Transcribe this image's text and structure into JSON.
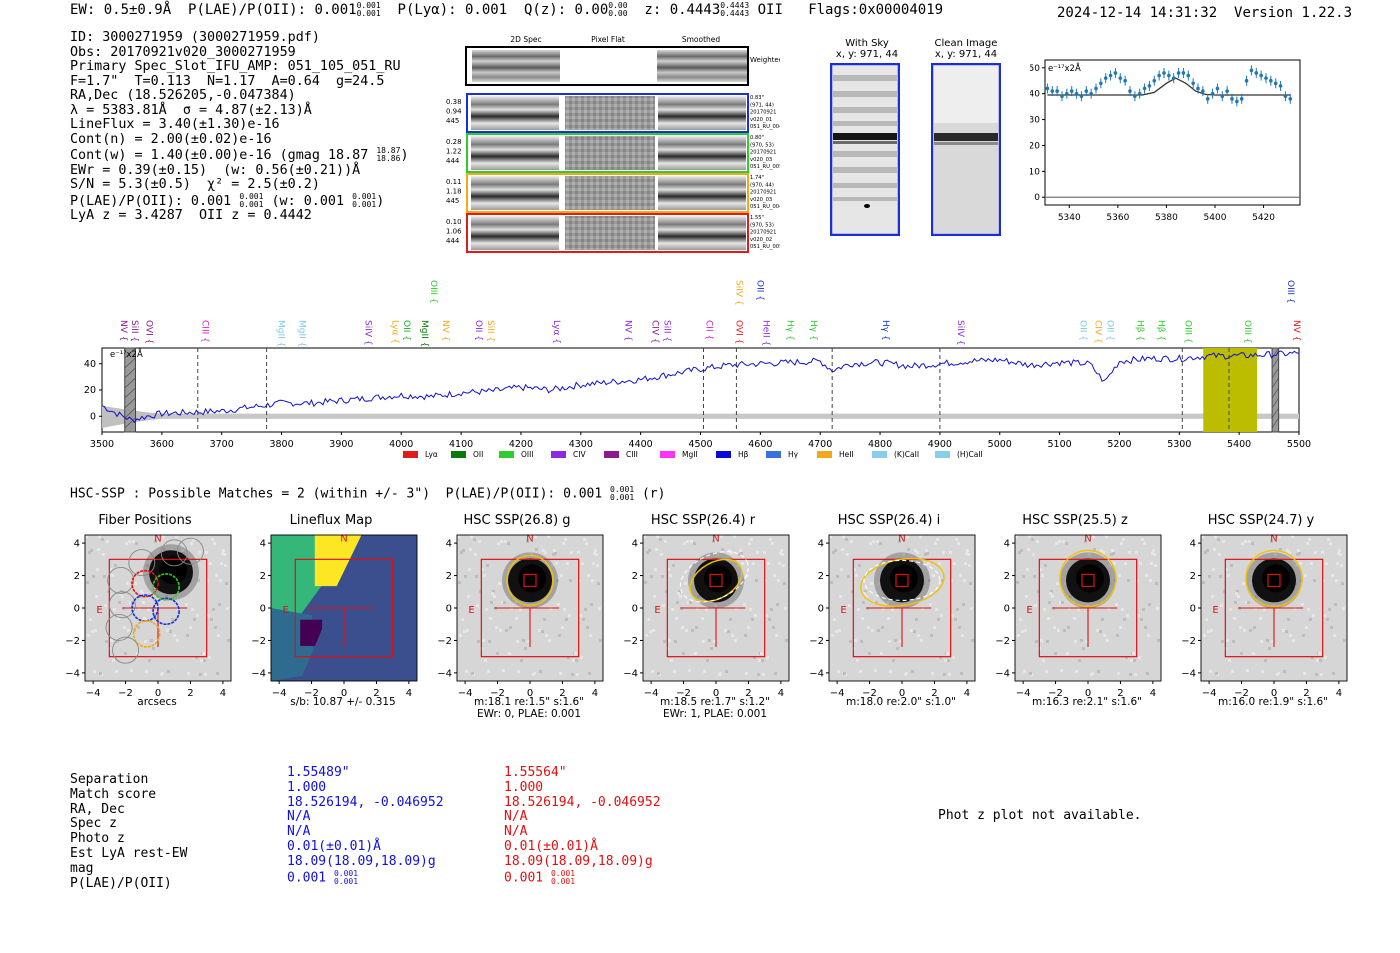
{
  "header": {
    "ew": "EW: 0.5±0.9Å",
    "plae_label": "P(LAE)/P(OII): 0.001",
    "plae_hi": "0.001",
    "plae_lo": "0.001",
    "plya": "P(Lyα): 0.001",
    "qz_label": "Q(z): 0.00",
    "qz_hi": "0.00",
    "qz_lo": "0.00",
    "z_label": "z: 0.4443",
    "z_hi": "0.4443",
    "z_lo": "0.4443",
    "z_line": "OII",
    "flags": "Flags:0x00004019",
    "datetime": "2024-12-14 14:31:32",
    "version": "Version 1.22.3"
  },
  "info": {
    "id": "ID: 3000271959 (3000271959.pdf)",
    "obs": "Obs: 20170921v020_3000271959",
    "primary": "Primary Spec_Slot_IFU_AMP: 051_105_051_RU",
    "fwhm": "F=1.7\"  T=0.113  N=1.17  A=0.64  g=24.5",
    "radec": "RA,Dec (18.526205,-0.047384)",
    "lambda": "λ = 5383.81Å  σ = 4.87(±2.13)Å",
    "lineflux": "LineFlux = 3.40(±1.30)e-16",
    "contn": "Cont(n) = 2.00(±0.02)e-16",
    "contw": "Cont(w) = 1.40(±0.00)e-16 (gmag 18.87",
    "contw_hi": "18.87",
    "contw_lo": "18.86",
    "contw_end": ")",
    "ewr": "EWr = 0.39(±0.15)  (w: 0.56(±0.21))Å",
    "sn": "S/N = 5.3(±0.5)  χ² = 2.5(±0.2)",
    "plae": "P(LAE)/P(OII): 0.001",
    "plae_hi": "0.001",
    "plae_lo": "0.001",
    "plae_w": "(w: 0.001",
    "plae_w_hi": "0.001",
    "plae_w_lo": "0.001",
    "plae_w_end": ")",
    "lya": "LyA z = 3.4287  OII z = 0.4442"
  },
  "spec2d": {
    "headers": [
      "2D Spec",
      "Pixel Flat",
      "Smoothed"
    ],
    "weighted_label": "Weighted Sum",
    "rows": [
      {
        "stats": [
          "0.38",
          "0.94",
          "445"
        ],
        "meta": [
          "0.83\"",
          "(971, 44)",
          "20170921",
          "v020_01",
          "051_RU_004"
        ],
        "color": "#1a2fd6"
      },
      {
        "stats": [
          "0.28",
          "1.22",
          "444"
        ],
        "meta": [
          "0.80\"",
          "(970, 53)",
          "20170921",
          "v020_03",
          "051_RU_005"
        ],
        "color": "#2ecc2e"
      },
      {
        "stats": [
          "0.11",
          "1.18",
          "445"
        ],
        "meta": [
          "1.74\"",
          "(970, 44)",
          "20170921",
          "v020_03",
          "051_RU_004"
        ],
        "color": "#f2a81c"
      },
      {
        "stats": [
          "0.10",
          "1.06",
          "444"
        ],
        "meta": [
          "1.55\"",
          "(970, 53)",
          "20170921",
          "v020_02",
          "051_RU_005"
        ],
        "color": "#e01b1b"
      }
    ]
  },
  "sky_panels": {
    "with_sky": "With Sky",
    "with_sky_xy": "x, y: 971, 44",
    "clean": "Clean Image",
    "clean_xy": "x, y: 971, 44"
  },
  "zoom_plot": {
    "ylabel": "e⁻¹⁷x2Å"
  },
  "line_labels": [
    {
      "name": "NV",
      "wave": 3537,
      "color": "#8b1a8b",
      "row": 1
    },
    {
      "name": "SiII",
      "wave": 3555,
      "color": "#8b1a8b",
      "row": 1
    },
    {
      "name": "OVI",
      "wave": 3579,
      "color": "#8b1a8b",
      "row": 1
    },
    {
      "name": "CIII",
      "wave": 3673,
      "color": "#d020d0",
      "row": 1
    },
    {
      "name": "MgII",
      "wave": 3800,
      "color": "#7fc7e8",
      "row": 1
    },
    {
      "name": "MgII",
      "wave": 3835,
      "color": "#7fc7e8",
      "row": 1
    },
    {
      "name": "SiIV",
      "wave": 3945,
      "color": "#8a2be2",
      "row": 1
    },
    {
      "name": "Lyα",
      "wave": 3990,
      "color": "#f2a81c",
      "row": 1
    },
    {
      "name": "OII",
      "wave": 4010,
      "color": "#1faf1f",
      "row": 1
    },
    {
      "name": "MgII",
      "wave": 4040,
      "color": "#0a7a0a",
      "row": 1
    },
    {
      "name": "OIII",
      "wave": 4055,
      "color": "#2ecc2e",
      "row": 0
    },
    {
      "name": "NV",
      "wave": 4075,
      "color": "#f2a81c",
      "row": 1
    },
    {
      "name": "OII",
      "wave": 4130,
      "color": "#8a2be2",
      "row": 1
    },
    {
      "name": "SiII",
      "wave": 4150,
      "color": "#f2a81c",
      "row": 1
    },
    {
      "name": "Lyα",
      "wave": 4260,
      "color": "#8a2be2",
      "row": 1
    },
    {
      "name": "NV",
      "wave": 4380,
      "color": "#8a2be2",
      "row": 1
    },
    {
      "name": "CIV",
      "wave": 4425,
      "color": "#8b1a8b",
      "row": 1
    },
    {
      "name": "SiII",
      "wave": 4445,
      "color": "#8a2be2",
      "row": 1
    },
    {
      "name": "CII",
      "wave": 4515,
      "color": "#d020d0",
      "row": 1
    },
    {
      "name": "SiIV",
      "wave": 4565,
      "color": "#f2a81c",
      "row": 0
    },
    {
      "name": "OII",
      "wave": 4600,
      "color": "#1a2fd6",
      "row": 0
    },
    {
      "name": "OVI",
      "wave": 4565,
      "color": "#e01b1b",
      "row": 1
    },
    {
      "name": "HeII",
      "wave": 4610,
      "color": "#8a2be2",
      "row": 1
    },
    {
      "name": "Hγ",
      "wave": 4650,
      "color": "#2ecc2e",
      "row": 1
    },
    {
      "name": "Hγ",
      "wave": 4690,
      "color": "#2ecc2e",
      "row": 1
    },
    {
      "name": "Hγ",
      "wave": 4810,
      "color": "#1a2fd6",
      "row": 1
    },
    {
      "name": "SiIV",
      "wave": 4935,
      "color": "#8a2be2",
      "row": 1
    },
    {
      "name": "OII",
      "wave": 5140,
      "color": "#7fc7e8",
      "row": 1
    },
    {
      "name": "CIV",
      "wave": 5165,
      "color": "#f2a81c",
      "row": 1
    },
    {
      "name": "OII",
      "wave": 5185,
      "color": "#7fc7e8",
      "row": 1
    },
    {
      "name": "Hβ",
      "wave": 5235,
      "color": "#2ecc2e",
      "row": 1
    },
    {
      "name": "Hβ",
      "wave": 5270,
      "color": "#2ecc2e",
      "row": 1
    },
    {
      "name": "OIII",
      "wave": 5315,
      "color": "#2ecc2e",
      "row": 1
    },
    {
      "name": "OIII",
      "wave": 5415,
      "color": "#2ecc2e",
      "row": 1
    },
    {
      "name": "OIII",
      "wave": 5487,
      "color": "#1a2fd6",
      "row": 0
    },
    {
      "name": "NV",
      "wave": 5497,
      "color": "#e01b1b",
      "row": 1
    }
  ],
  "legend": [
    {
      "label": "Lyα",
      "color": "#e01b1b"
    },
    {
      "label": "OII",
      "color": "#0a7a0a"
    },
    {
      "label": "OIII",
      "color": "#2ecc2e"
    },
    {
      "label": "CIV",
      "color": "#8a2be2"
    },
    {
      "label": "CIII",
      "color": "#8b1a8b"
    },
    {
      "label": "MgII",
      "color": "#ff33ff"
    },
    {
      "label": "Hβ",
      "color": "#0a0ad6"
    },
    {
      "label": "Hγ",
      "color": "#3a6fe0"
    },
    {
      "label": "HeII",
      "color": "#f2a81c"
    },
    {
      "label": "(K)CaII",
      "color": "#87cee8"
    },
    {
      "label": "(H)CaII",
      "color": "#87cee8"
    }
  ],
  "hsc": {
    "title": "HSC-SSP : Possible Matches = 2 (within +/- 3\")  P(LAE)/P(OII): 0.001",
    "title_hi": "0.001",
    "title_lo": "0.001",
    "title_end": "(r)",
    "cutouts": [
      {
        "title": "Fiber Positions",
        "caption1": "arcsecs",
        "caption2": ""
      },
      {
        "title": "Lineflux Map",
        "caption1": "s/b: 10.87 +/- 0.315",
        "caption2": ""
      },
      {
        "title": "HSC SSP(26.8) g",
        "caption1": "m:18.1  re:1.5\"  s:1.6\"",
        "caption2": "EWr: 0, PLAE: 0.001"
      },
      {
        "title": "HSC SSP(26.4) r",
        "caption1": "m:18.5  re:1.7\"  s:1.2\"",
        "caption2": "EWr: 1, PLAE: 0.001"
      },
      {
        "title": "HSC SSP(26.4) i",
        "caption1": "m:18.0  re:2.0\"  s:1.0\"",
        "caption2": ""
      },
      {
        "title": "HSC SSP(25.5) z",
        "caption1": "m:16.3  re:2.1\"  s:1.6\"",
        "caption2": ""
      },
      {
        "title": "HSC SSP(24.7) y",
        "caption1": "m:16.0  re:1.9\"  s:1.6\"",
        "caption2": ""
      }
    ],
    "north": "N",
    "east": "E"
  },
  "matches": {
    "labels": [
      "Separation",
      "Match score",
      "RA, Dec",
      "Spec z",
      "Photo z",
      "Est LyA rest-EW",
      "mag",
      "P(LAE)/P(OII)"
    ],
    "a": [
      "1.55489\"",
      "1.000",
      "18.526194, -0.046952",
      "N/A",
      "N/A",
      "0.01(±0.01)Å",
      "18.09(18.09,18.09)g",
      "0.001"
    ],
    "a_plae_hi": "0.001",
    "a_plae_lo": "0.001",
    "b": [
      "1.55564\"",
      "1.000",
      "18.526194, -0.046952",
      "N/A",
      "N/A",
      "0.01(±0.01)Å",
      "18.09(18.09,18.09)g",
      "0.001"
    ],
    "b_plae_hi": "0.001",
    "b_plae_lo": "0.001"
  },
  "photz_note": "Phot z plot not available.",
  "chart_data": [
    {
      "type": "line",
      "title": "Emission line zoom",
      "ylabel": "e⁻¹⁷x2Å",
      "xlim": [
        5330,
        5435
      ],
      "ylim": [
        -3,
        53
      ],
      "xticks": [
        5340,
        5360,
        5380,
        5400,
        5420
      ],
      "yticks": [
        0,
        10,
        20,
        30,
        40,
        50
      ],
      "series": [
        {
          "name": "data",
          "x": [
            5331,
            5333,
            5335,
            5337,
            5339,
            5341,
            5343,
            5345,
            5347,
            5349,
            5351,
            5353,
            5355,
            5357,
            5359,
            5361,
            5363,
            5365,
            5367,
            5369,
            5371,
            5373,
            5375,
            5377,
            5379,
            5381,
            5383,
            5385,
            5387,
            5389,
            5391,
            5393,
            5395,
            5397,
            5399,
            5401,
            5403,
            5405,
            5407,
            5409,
            5411,
            5413,
            5415,
            5417,
            5419,
            5421,
            5423,
            5425,
            5427,
            5429,
            5431
          ],
          "values": [
            42,
            41,
            41,
            39,
            40,
            41,
            40,
            39,
            41,
            40,
            42,
            44,
            46,
            47,
            48,
            46,
            45,
            41,
            39,
            40,
            42,
            43,
            45,
            47,
            48,
            47,
            46,
            48,
            48,
            47,
            44,
            42,
            41,
            38,
            40,
            42,
            39,
            41,
            38,
            37,
            38,
            45,
            49,
            48,
            47,
            46,
            45,
            44,
            43,
            39,
            38
          ]
        },
        {
          "name": "fit",
          "x": [
            5331,
            5340,
            5350,
            5360,
            5370,
            5375,
            5380,
            5383.8,
            5388,
            5392,
            5396,
            5400,
            5410,
            5420,
            5431
          ],
          "values": [
            39.5,
            39.5,
            39.5,
            39.5,
            39.5,
            40.5,
            44,
            46,
            44,
            41,
            39.7,
            39.5,
            39.5,
            39.5,
            39.5
          ]
        }
      ]
    },
    {
      "type": "line",
      "title": "Full spectrum",
      "ylabel": "e⁻¹⁷x2Å",
      "xlim": [
        3500,
        5500
      ],
      "ylim": [
        -12,
        52
      ],
      "xticks": [
        3500,
        3600,
        3700,
        3800,
        3900,
        4000,
        4100,
        4200,
        4300,
        4400,
        4500,
        4600,
        4700,
        4800,
        4900,
        5000,
        5100,
        5200,
        5300,
        5400,
        5500
      ],
      "yticks": [
        0,
        20,
        40
      ],
      "series": [
        {
          "name": "spectrum",
          "x": [
            3500,
            3525,
            3550,
            3575,
            3600,
            3650,
            3700,
            3750,
            3800,
            3850,
            3900,
            3950,
            4000,
            4050,
            4100,
            4150,
            4200,
            4250,
            4300,
            4350,
            4400,
            4450,
            4500,
            4550,
            4600,
            4650,
            4700,
            4720,
            4750,
            4800,
            4850,
            4900,
            4950,
            5000,
            5050,
            5100,
            5150,
            5175,
            5200,
            5250,
            5300,
            5350,
            5400,
            5450,
            5500
          ],
          "values": [
            8,
            2,
            -3,
            0,
            2,
            3,
            4,
            7,
            10,
            10,
            12,
            14,
            16,
            15,
            18,
            19,
            22,
            20,
            24,
            26,
            28,
            32,
            36,
            39,
            40,
            41,
            42,
            35,
            40,
            41,
            38,
            40,
            42,
            43,
            39,
            41,
            40,
            26,
            42,
            44,
            44,
            46,
            46,
            47,
            48
          ]
        }
      ],
      "vlines_dashed": [
        3660,
        3775,
        4505,
        4560,
        4720,
        4900,
        5305,
        5383
      ],
      "highlight_regions": [
        [
          5340,
          5430
        ]
      ],
      "masked_regions": [
        [
          3538,
          3556
        ],
        [
          5455,
          5466
        ]
      ]
    }
  ]
}
